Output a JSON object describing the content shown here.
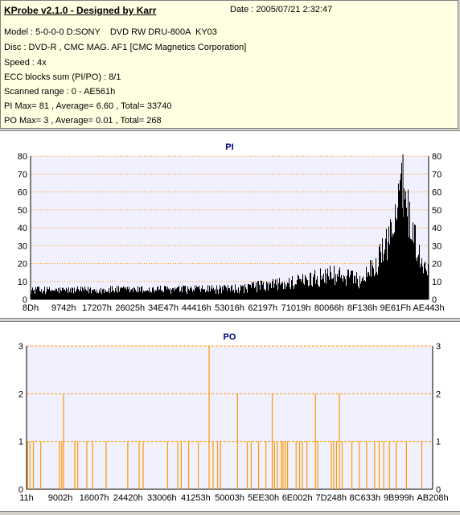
{
  "header": {
    "app_title": "KProbe v2.1.0 - Designed by Karr",
    "date": "Date : 2005/07/21 2:32:47",
    "model": "Model : 5-0-0-0 D:SONY    DVD RW DRU-800A  KY03",
    "disc": "Disc : DVD-R , CMC MAG. AF1 [CMC Magnetics Corporation]",
    "speed": "Speed : 4x",
    "ecc": "ECC blocks sum (PI/PO) : 8/1",
    "scanned": "Scanned range : 0 - AE561h",
    "pi_summary": "PI Max= 81 , Average= 6.60 , Total= 33740",
    "po_summary": "PO Max= 3 , Average= 0.01 , Total= 268"
  },
  "colors": {
    "plot_bg": "#f0f0ff",
    "pi_bars": "#000000",
    "po_bars": "#ff9900",
    "grid": "#ff9900",
    "title": "#000080"
  },
  "chart_data": [
    {
      "type": "bar",
      "title": "PI",
      "ylim": [
        0,
        80
      ],
      "yticks": [
        0,
        10,
        20,
        30,
        40,
        50,
        60,
        70,
        80
      ],
      "xlim": [
        0,
        714081
      ],
      "xtick_labels": [
        "8Dh",
        "9742h",
        "17207h",
        "26025h",
        "34E47h",
        "44416h",
        "53016h",
        "62197h",
        "71019h",
        "80066h",
        "8F136h",
        "9E61Fh",
        "AE443h"
      ],
      "grid": true,
      "series": [
        {
          "profile": [
            {
              "x": 0,
              "base": 3,
              "peak": 7
            },
            {
              "x": 360000,
              "base": 3,
              "peak": 8
            },
            {
              "x": 470000,
              "base": 5,
              "peak": 13
            },
            {
              "x": 540000,
              "base": 8,
              "peak": 19
            },
            {
              "x": 590000,
              "base": 6,
              "peak": 15
            },
            {
              "x": 620000,
              "base": 12,
              "peak": 26
            },
            {
              "x": 650000,
              "base": 26,
              "peak": 48
            },
            {
              "x": 668000,
              "base": 45,
              "peak": 81
            },
            {
              "x": 685000,
              "base": 28,
              "peak": 50
            },
            {
              "x": 700000,
              "base": 15,
              "peak": 28
            },
            {
              "x": 714081,
              "base": 12,
              "peak": 22
            }
          ],
          "max": 81
        }
      ]
    },
    {
      "type": "bar",
      "title": "PO",
      "ylim": [
        0,
        3
      ],
      "yticks": [
        0,
        1,
        2,
        3
      ],
      "xlim": [
        0,
        714081
      ],
      "xtick_labels": [
        "11h",
        "9002h",
        "16007h",
        "24420h",
        "33006h",
        "41253h",
        "50003h",
        "5EE30h",
        "6E002h",
        "7D248h",
        "8C633h",
        "9B999h",
        "AB208h"
      ],
      "grid": true,
      "series": [
        {
          "points": [
            {
              "x": 2000,
              "y": 1
            },
            {
              "x": 6000,
              "y": 1
            },
            {
              "x": 12000,
              "y": 1
            },
            {
              "x": 25000,
              "y": 1
            },
            {
              "x": 58000,
              "y": 1
            },
            {
              "x": 62000,
              "y": 1
            },
            {
              "x": 65000,
              "y": 2
            },
            {
              "x": 85000,
              "y": 1
            },
            {
              "x": 90000,
              "y": 1
            },
            {
              "x": 106000,
              "y": 1
            },
            {
              "x": 116000,
              "y": 1
            },
            {
              "x": 140000,
              "y": 1
            },
            {
              "x": 178000,
              "y": 1
            },
            {
              "x": 198000,
              "y": 1
            },
            {
              "x": 205000,
              "y": 1
            },
            {
              "x": 248000,
              "y": 1
            },
            {
              "x": 266000,
              "y": 1
            },
            {
              "x": 272000,
              "y": 1
            },
            {
              "x": 285000,
              "y": 1
            },
            {
              "x": 302000,
              "y": 1
            },
            {
              "x": 321000,
              "y": 3
            },
            {
              "x": 328000,
              "y": 1
            },
            {
              "x": 336000,
              "y": 1
            },
            {
              "x": 341000,
              "y": 1
            },
            {
              "x": 371000,
              "y": 2
            },
            {
              "x": 388000,
              "y": 1
            },
            {
              "x": 395000,
              "y": 1
            },
            {
              "x": 408000,
              "y": 1
            },
            {
              "x": 421000,
              "y": 1
            },
            {
              "x": 432000,
              "y": 2
            },
            {
              "x": 436000,
              "y": 1
            },
            {
              "x": 441000,
              "y": 1
            },
            {
              "x": 448000,
              "y": 1
            },
            {
              "x": 451000,
              "y": 1
            },
            {
              "x": 455000,
              "y": 1
            },
            {
              "x": 459000,
              "y": 1
            },
            {
              "x": 474000,
              "y": 1
            },
            {
              "x": 480000,
              "y": 1
            },
            {
              "x": 485000,
              "y": 1
            },
            {
              "x": 493000,
              "y": 1
            },
            {
              "x": 508000,
              "y": 2
            },
            {
              "x": 512000,
              "y": 1
            },
            {
              "x": 536000,
              "y": 1
            },
            {
              "x": 540000,
              "y": 1
            },
            {
              "x": 545000,
              "y": 1
            },
            {
              "x": 550000,
              "y": 2
            },
            {
              "x": 555000,
              "y": 1
            },
            {
              "x": 572000,
              "y": 1
            },
            {
              "x": 585000,
              "y": 1
            },
            {
              "x": 598000,
              "y": 1
            },
            {
              "x": 612000,
              "y": 1
            },
            {
              "x": 620000,
              "y": 1
            },
            {
              "x": 628000,
              "y": 1
            },
            {
              "x": 638000,
              "y": 1
            },
            {
              "x": 650000,
              "y": 1
            },
            {
              "x": 668000,
              "y": 1
            },
            {
              "x": 695000,
              "y": 1
            }
          ],
          "max": 3
        }
      ]
    }
  ]
}
